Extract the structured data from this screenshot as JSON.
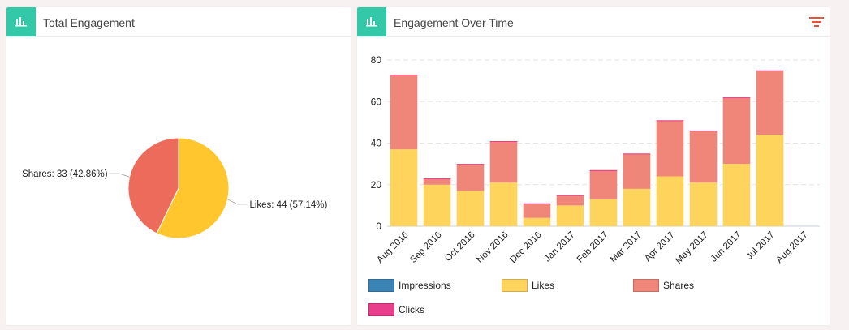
{
  "panels": {
    "total": {
      "title": "Total Engagement",
      "icon": "bar-chart-icon"
    },
    "over_time": {
      "title": "Engagement Over Time",
      "icon": "bar-chart-icon",
      "filter_icon": "filter-icon"
    }
  },
  "colors": {
    "accent": "#33c9a8",
    "impressions": "#3a83b5",
    "likes": "#fed45d",
    "shares": "#f0857a",
    "clicks": "#e83e8c",
    "pie_likes": "#ffc62e",
    "pie_shares": "#ec6b5b",
    "filter": "#e4533a"
  },
  "chart_data": [
    {
      "type": "pie",
      "title": "Total Engagement",
      "slices": [
        {
          "name": "Likes",
          "value": 44,
          "label": "Likes: 44 (57.14%)"
        },
        {
          "name": "Shares",
          "value": 33,
          "label": "Shares: 33 (42.86%)"
        }
      ]
    },
    {
      "type": "bar",
      "stacked": true,
      "title": "Engagement Over Time",
      "categories": [
        "Aug 2016",
        "Sep 2016",
        "Oct 2016",
        "Nov 2016",
        "Dec 2016",
        "Jan 2017",
        "Feb 2017",
        "Mar 2017",
        "Apr 2017",
        "May 2017",
        "Jun 2017",
        "Jul 2017",
        "Aug 2017"
      ],
      "series": [
        {
          "name": "Impressions",
          "values": [
            0,
            0,
            0,
            0,
            0,
            0,
            0,
            0,
            0,
            0,
            0,
            0,
            0
          ]
        },
        {
          "name": "Likes",
          "values": [
            37,
            20,
            17,
            21,
            4,
            10,
            13,
            18,
            24,
            21,
            30,
            44,
            0
          ]
        },
        {
          "name": "Shares",
          "values": [
            36,
            3,
            13,
            20,
            7,
            5,
            14,
            17,
            27,
            25,
            32,
            31,
            0
          ]
        },
        {
          "name": "Clicks",
          "values": [
            0,
            0,
            0,
            0,
            0,
            0,
            0,
            0,
            0,
            0,
            0,
            0,
            0
          ]
        }
      ],
      "yticks": [
        "0",
        "20",
        "40",
        "60",
        "80"
      ],
      "ylim": [
        0,
        80
      ],
      "grid": true,
      "legend": "bottom"
    }
  ]
}
